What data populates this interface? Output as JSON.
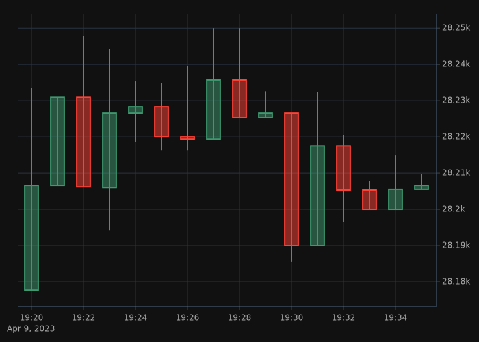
{
  "chart_data": {
    "type": "candlestick",
    "x": [
      "19:20",
      null,
      "19:22",
      null,
      "19:24",
      null,
      "19:26",
      null,
      "19:28",
      null,
      "19:30",
      null,
      "19:32",
      null,
      "19:34",
      null
    ],
    "x_date_label": "Apr 9, 2023",
    "open": [
      28177.7,
      28206.6,
      28230.9,
      28206.0,
      28226.6,
      28228.3,
      28220.0,
      28219.4,
      28235.7,
      28225.3,
      28226.6,
      28190.0,
      28217.5,
      28205.3,
      28200.0,
      28205.5
    ],
    "high": [
      28233.6,
      28230.9,
      28247.9,
      28244.3,
      28235.3,
      28234.9,
      28239.6,
      28250.0,
      28250.0,
      28232.6,
      28226.6,
      28232.3,
      28220.4,
      28207.9,
      28214.9,
      28209.8
    ],
    "low": [
      28177.4,
      28206.6,
      28206.2,
      28194.3,
      28218.7,
      28216.2,
      28216.2,
      28219.4,
      28225.3,
      28225.3,
      28185.5,
      28190.0,
      28196.6,
      28200.0,
      28200.0,
      28205.5
    ],
    "close": [
      28206.6,
      28230.9,
      28206.2,
      28226.6,
      28228.3,
      28220.0,
      28219.4,
      28235.7,
      28225.3,
      28226.6,
      28190.0,
      28217.5,
      28205.3,
      28200.0,
      28205.5,
      28206.6
    ],
    "increasing_color": "#3d9970",
    "decreasing_color": "#ff4136",
    "ylim": [
      28173.2,
      28254.0
    ],
    "yticks": [
      {
        "value": 28180,
        "label": "28.18k"
      },
      {
        "value": 28190,
        "label": "28.19k"
      },
      {
        "value": 28200,
        "label": "28.2k"
      },
      {
        "value": 28210,
        "label": "28.21k"
      },
      {
        "value": 28220,
        "label": "28.22k"
      },
      {
        "value": 28230,
        "label": "28.23k"
      },
      {
        "value": 28240,
        "label": "28.24k"
      },
      {
        "value": 28250,
        "label": "28.25k"
      }
    ],
    "y_axis_side": "right",
    "grid": true
  }
}
